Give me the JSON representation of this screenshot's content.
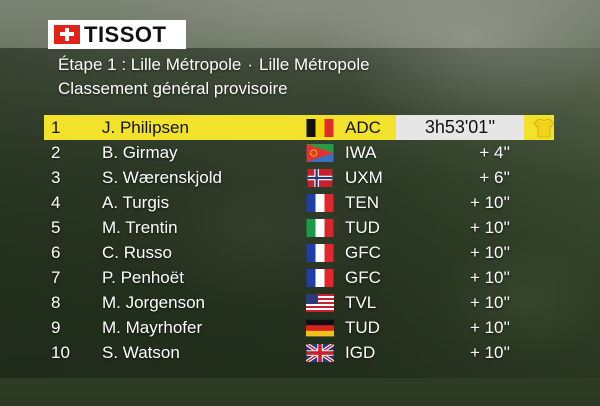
{
  "brand": "TISSOT",
  "stage": {
    "label": "Étape 1 : Lille Métropole",
    "separator": "·",
    "destination": "Lille Métropole"
  },
  "classification_title": "Classement général provisoire",
  "standings": [
    {
      "pos": "1",
      "name": "J. Philipsen",
      "flag": "belgium",
      "team": "ADC",
      "time": "3h53'01''"
    },
    {
      "pos": "2",
      "name": "B. Girmay",
      "flag": "eritrea",
      "team": "IWA",
      "time": "+ 4''"
    },
    {
      "pos": "3",
      "name": "S. Wærenskjold",
      "flag": "norway",
      "team": "UXM",
      "time": "+ 6''"
    },
    {
      "pos": "4",
      "name": "A. Turgis",
      "flag": "france",
      "team": "TEN",
      "time": "+ 10''"
    },
    {
      "pos": "5",
      "name": "M. Trentin",
      "flag": "italy",
      "team": "TUD",
      "time": "+ 10''"
    },
    {
      "pos": "6",
      "name": "C. Russo",
      "flag": "france",
      "team": "GFC",
      "time": "+ 10''"
    },
    {
      "pos": "7",
      "name": "P. Penhoët",
      "flag": "france",
      "team": "GFC",
      "time": "+ 10''"
    },
    {
      "pos": "8",
      "name": "M. Jorgenson",
      "flag": "usa",
      "team": "TVL",
      "time": "+ 10''"
    },
    {
      "pos": "9",
      "name": "M. Mayrhofer",
      "flag": "germany",
      "team": "TUD",
      "time": "+ 10''"
    },
    {
      "pos": "10",
      "name": "S. Watson",
      "flag": "uk",
      "team": "IGD",
      "time": "+ 10''"
    }
  ],
  "leader_jersey_icon": "yellow-jersey-icon",
  "colors": {
    "leader_highlight": "#f3e22c",
    "leader_time_bg": "#e6e6e6",
    "brand_red": "#e2231a",
    "jersey_yellow": "#f3d21c"
  }
}
